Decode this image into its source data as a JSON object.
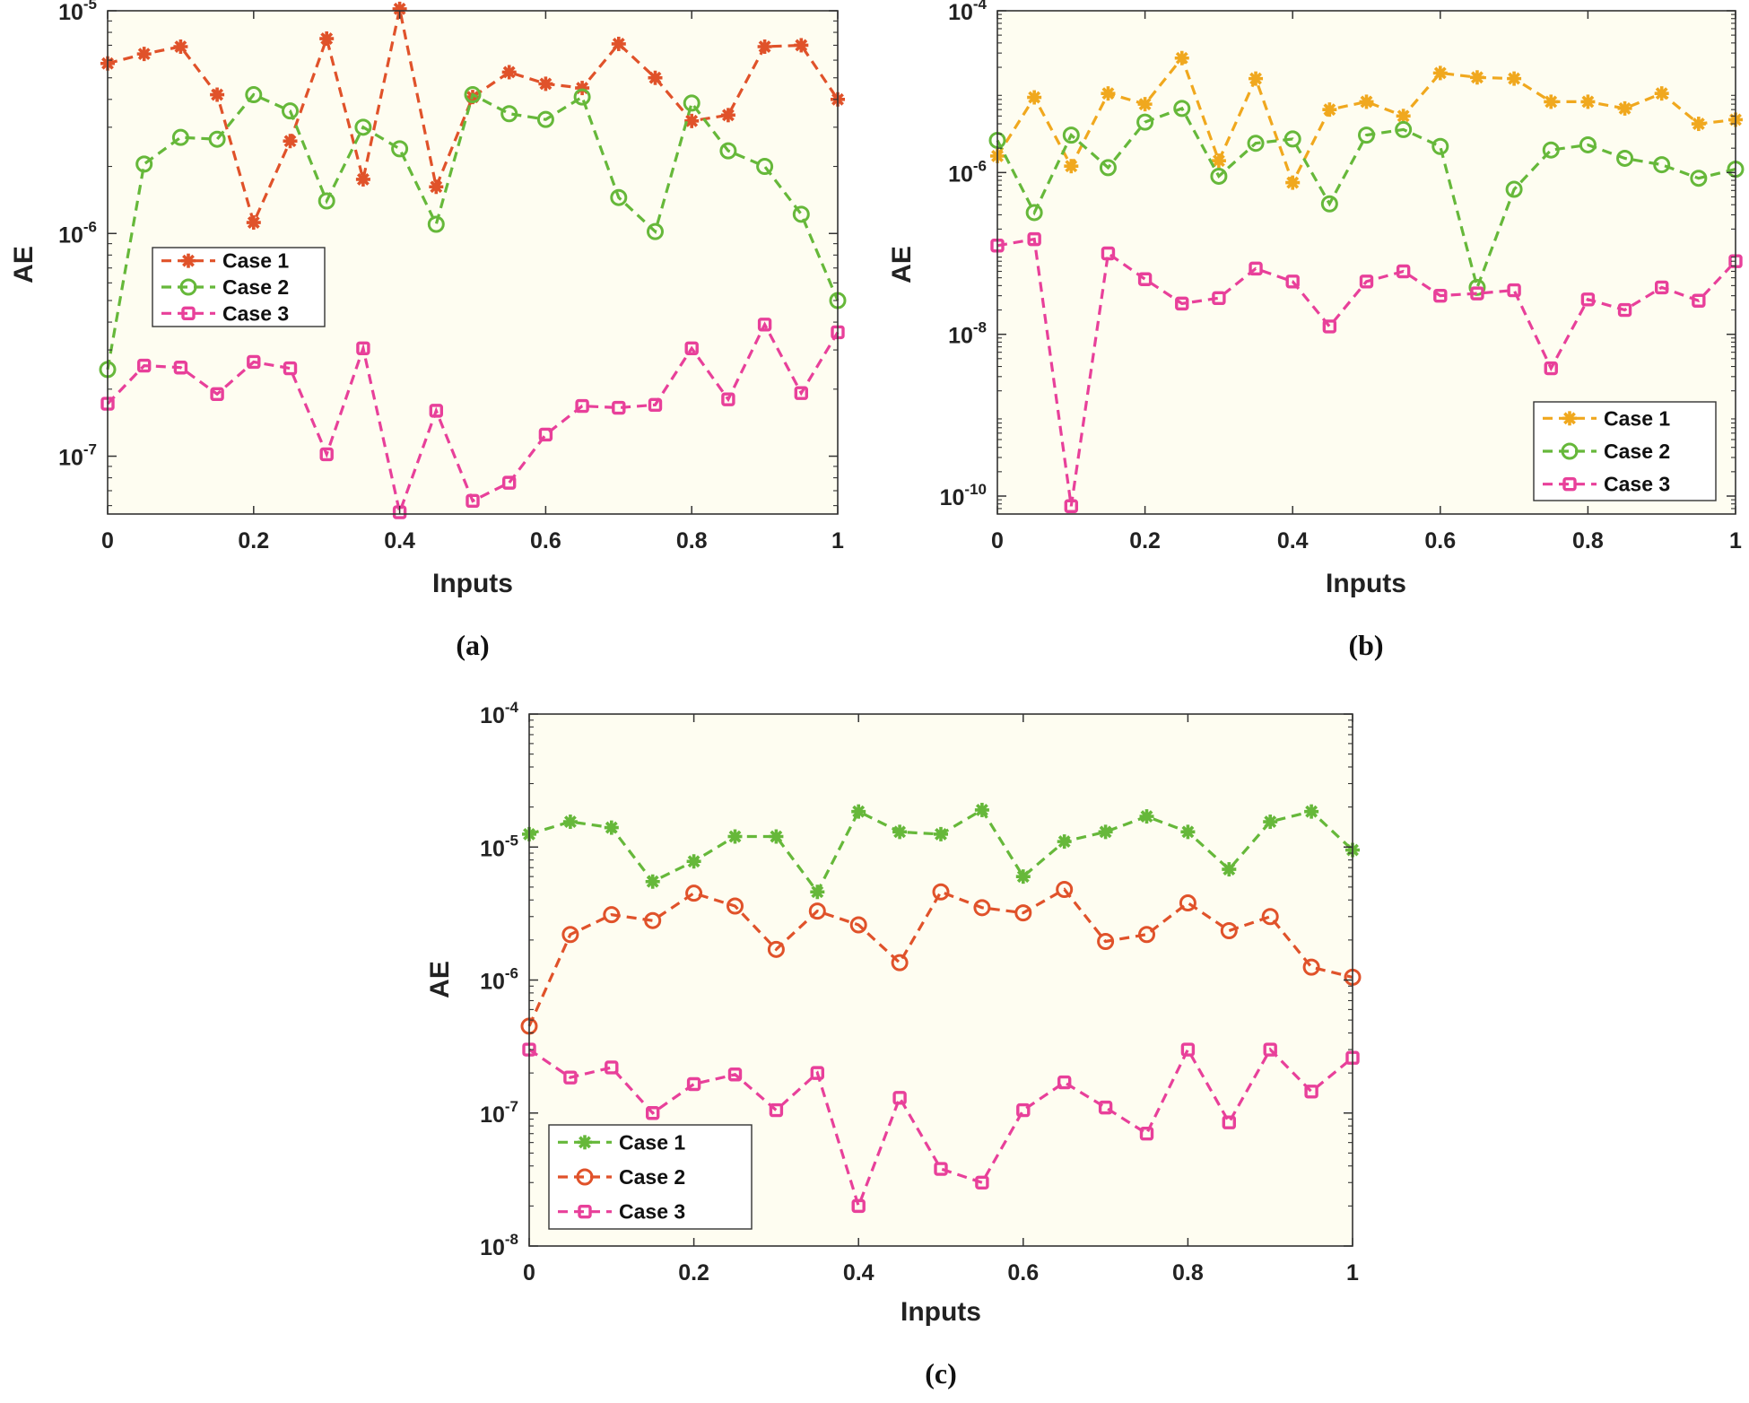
{
  "chart_data": [
    {
      "type": "line",
      "panel_label": "(a)",
      "xlabel": "Inputs",
      "ylabel": "AE",
      "xlim": [
        0,
        1
      ],
      "ylim": [
        5.5e-08,
        1e-05
      ],
      "yscale": "log",
      "xticks": [
        "0",
        "0.2",
        "0.4",
        "0.6",
        "0.8",
        "1"
      ],
      "yticks": [
        {
          "base": "10",
          "exp": "-7",
          "value": 1e-07
        },
        {
          "base": "10",
          "exp": "-6",
          "value": 1e-06
        },
        {
          "base": "10",
          "exp": "-5",
          "value": 1e-05
        }
      ],
      "legend_position": "middle-left",
      "x": [
        0,
        0.05,
        0.1,
        0.15,
        0.2,
        0.25,
        0.3,
        0.35,
        0.4,
        0.45,
        0.5,
        0.55,
        0.6,
        0.65,
        0.7,
        0.75,
        0.8,
        0.85,
        0.9,
        0.95,
        1
      ],
      "series": [
        {
          "name": "Case 1",
          "color": "#e0522a",
          "marker": "asterisk",
          "values": [
            5.8e-06,
            6.4e-06,
            6.9e-06,
            4.2e-06,
            1.12e-06,
            2.6e-06,
            7.5e-06,
            1.75e-06,
            1.02e-05,
            1.62e-06,
            4.1e-06,
            5.3e-06,
            4.7e-06,
            4.5e-06,
            7.1e-06,
            5e-06,
            3.2e-06,
            3.4e-06,
            6.9e-06,
            7e-06,
            4e-06
          ]
        },
        {
          "name": "Case 2",
          "color": "#66b83a",
          "marker": "circle",
          "values": [
            2.45e-07,
            2.05e-06,
            2.7e-06,
            2.65e-06,
            4.2e-06,
            3.55e-06,
            1.4e-06,
            3e-06,
            2.4e-06,
            1.1e-06,
            4.2e-06,
            3.45e-06,
            3.25e-06,
            4.1e-06,
            1.45e-06,
            1.02e-06,
            3.85e-06,
            2.35e-06,
            2e-06,
            1.22e-06,
            5e-07
          ]
        },
        {
          "name": "Case 3",
          "color": "#e8409a",
          "marker": "square",
          "values": [
            1.72e-07,
            2.55e-07,
            2.5e-07,
            1.9e-07,
            2.65e-07,
            2.48e-07,
            1.02e-07,
            3.05e-07,
            5.6e-08,
            1.6e-07,
            6.3e-08,
            7.6e-08,
            1.25e-07,
            1.68e-07,
            1.65e-07,
            1.7e-07,
            3.05e-07,
            1.8e-07,
            3.9e-07,
            1.92e-07,
            3.6e-07
          ]
        }
      ]
    },
    {
      "type": "line",
      "panel_label": "(b)",
      "xlabel": "Inputs",
      "ylabel": "AE",
      "xlim": [
        0,
        1
      ],
      "ylim": [
        6e-11,
        0.0001
      ],
      "yscale": "log",
      "xticks": [
        "0",
        "0.2",
        "0.4",
        "0.6",
        "0.8",
        "1"
      ],
      "yticks": [
        {
          "base": "10",
          "exp": "-10",
          "value": 1e-10
        },
        {
          "base": "10",
          "exp": "-8",
          "value": 1e-08
        },
        {
          "base": "10",
          "exp": "-6",
          "value": 1e-06
        },
        {
          "base": "10",
          "exp": "-4",
          "value": 0.0001
        }
      ],
      "legend_position": "bottom-right",
      "x": [
        0,
        0.05,
        0.1,
        0.15,
        0.2,
        0.25,
        0.3,
        0.35,
        0.4,
        0.45,
        0.5,
        0.55,
        0.6,
        0.65,
        0.7,
        0.75,
        0.8,
        0.85,
        0.9,
        0.95,
        1
      ],
      "series": [
        {
          "name": "Case 1",
          "color": "#f0a81e",
          "marker": "asterisk",
          "values": [
            1.6e-06,
            8.5e-06,
            1.2e-06,
            9.5e-06,
            7e-06,
            2.6e-05,
            1.4e-06,
            1.45e-05,
            7.5e-07,
            6e-06,
            7.5e-06,
            5e-06,
            1.7e-05,
            1.5e-05,
            1.45e-05,
            7.5e-06,
            7.5e-06,
            6.2e-06,
            9.5e-06,
            4e-06,
            4.5e-06
          ]
        },
        {
          "name": "Case 2",
          "color": "#66b83a",
          "marker": "circle",
          "values": [
            2.5e-06,
            3.2e-07,
            2.9e-06,
            1.15e-06,
            4.2e-06,
            6.2e-06,
            9e-07,
            2.3e-06,
            2.6e-06,
            4.1e-07,
            2.9e-06,
            3.4e-06,
            2.1e-06,
            3.8e-08,
            6.2e-07,
            1.9e-06,
            2.2e-06,
            1.5e-06,
            1.25e-06,
            8.5e-07,
            1.1e-06
          ]
        },
        {
          "name": "Case 3",
          "color": "#e8409a",
          "marker": "square",
          "values": [
            1.25e-07,
            1.5e-07,
            7.5e-11,
            1e-07,
            4.8e-08,
            2.4e-08,
            2.8e-08,
            6.5e-08,
            4.5e-08,
            1.25e-08,
            4.5e-08,
            6e-08,
            3e-08,
            3.2e-08,
            3.5e-08,
            3.8e-09,
            2.7e-08,
            2e-08,
            3.8e-08,
            2.6e-08,
            8e-08
          ]
        }
      ]
    },
    {
      "type": "line",
      "panel_label": "(c)",
      "xlabel": "Inputs",
      "ylabel": "AE",
      "xlim": [
        0,
        1
      ],
      "ylim": [
        1e-08,
        0.0001
      ],
      "yscale": "log",
      "xticks": [
        "0",
        "0.2",
        "0.4",
        "0.6",
        "0.8",
        "1"
      ],
      "yticks": [
        {
          "base": "10",
          "exp": "-8",
          "value": 1e-08
        },
        {
          "base": "10",
          "exp": "-7",
          "value": 1e-07
        },
        {
          "base": "10",
          "exp": "-6",
          "value": 1e-06
        },
        {
          "base": "10",
          "exp": "-5",
          "value": 1e-05
        },
        {
          "base": "10",
          "exp": "-4",
          "value": 0.0001
        }
      ],
      "legend_position": "bottom-left",
      "x": [
        0,
        0.05,
        0.1,
        0.15,
        0.2,
        0.25,
        0.3,
        0.35,
        0.4,
        0.45,
        0.5,
        0.55,
        0.6,
        0.65,
        0.7,
        0.75,
        0.8,
        0.85,
        0.9,
        0.95,
        1
      ],
      "series": [
        {
          "name": "Case 1",
          "color": "#66b83a",
          "marker": "asterisk",
          "values": [
            1.25e-05,
            1.55e-05,
            1.4e-05,
            5.5e-06,
            7.8e-06,
            1.2e-05,
            1.2e-05,
            4.6e-06,
            1.85e-05,
            1.3e-05,
            1.25e-05,
            1.9e-05,
            6e-06,
            1.1e-05,
            1.3e-05,
            1.7e-05,
            1.3e-05,
            6.8e-06,
            1.55e-05,
            1.85e-05,
            9.5e-06
          ]
        },
        {
          "name": "Case 2",
          "color": "#e0522a",
          "marker": "circle",
          "values": [
            4.5e-07,
            2.2e-06,
            3.1e-06,
            2.8e-06,
            4.5e-06,
            3.6e-06,
            1.7e-06,
            3.3e-06,
            2.6e-06,
            1.35e-06,
            4.6e-06,
            3.5e-06,
            3.2e-06,
            4.8e-06,
            1.95e-06,
            2.2e-06,
            3.8e-06,
            2.35e-06,
            3e-06,
            1.25e-06,
            1.05e-06
          ]
        },
        {
          "name": "Case 3",
          "color": "#e8409a",
          "marker": "square",
          "values": [
            3e-07,
            1.85e-07,
            2.2e-07,
            1e-07,
            1.65e-07,
            1.95e-07,
            1.05e-07,
            2e-07,
            2e-08,
            1.3e-07,
            3.8e-08,
            3e-08,
            1.05e-07,
            1.7e-07,
            1.1e-07,
            7e-08,
            3e-07,
            8.5e-08,
            3e-07,
            1.45e-07,
            2.6e-07
          ]
        }
      ]
    }
  ]
}
